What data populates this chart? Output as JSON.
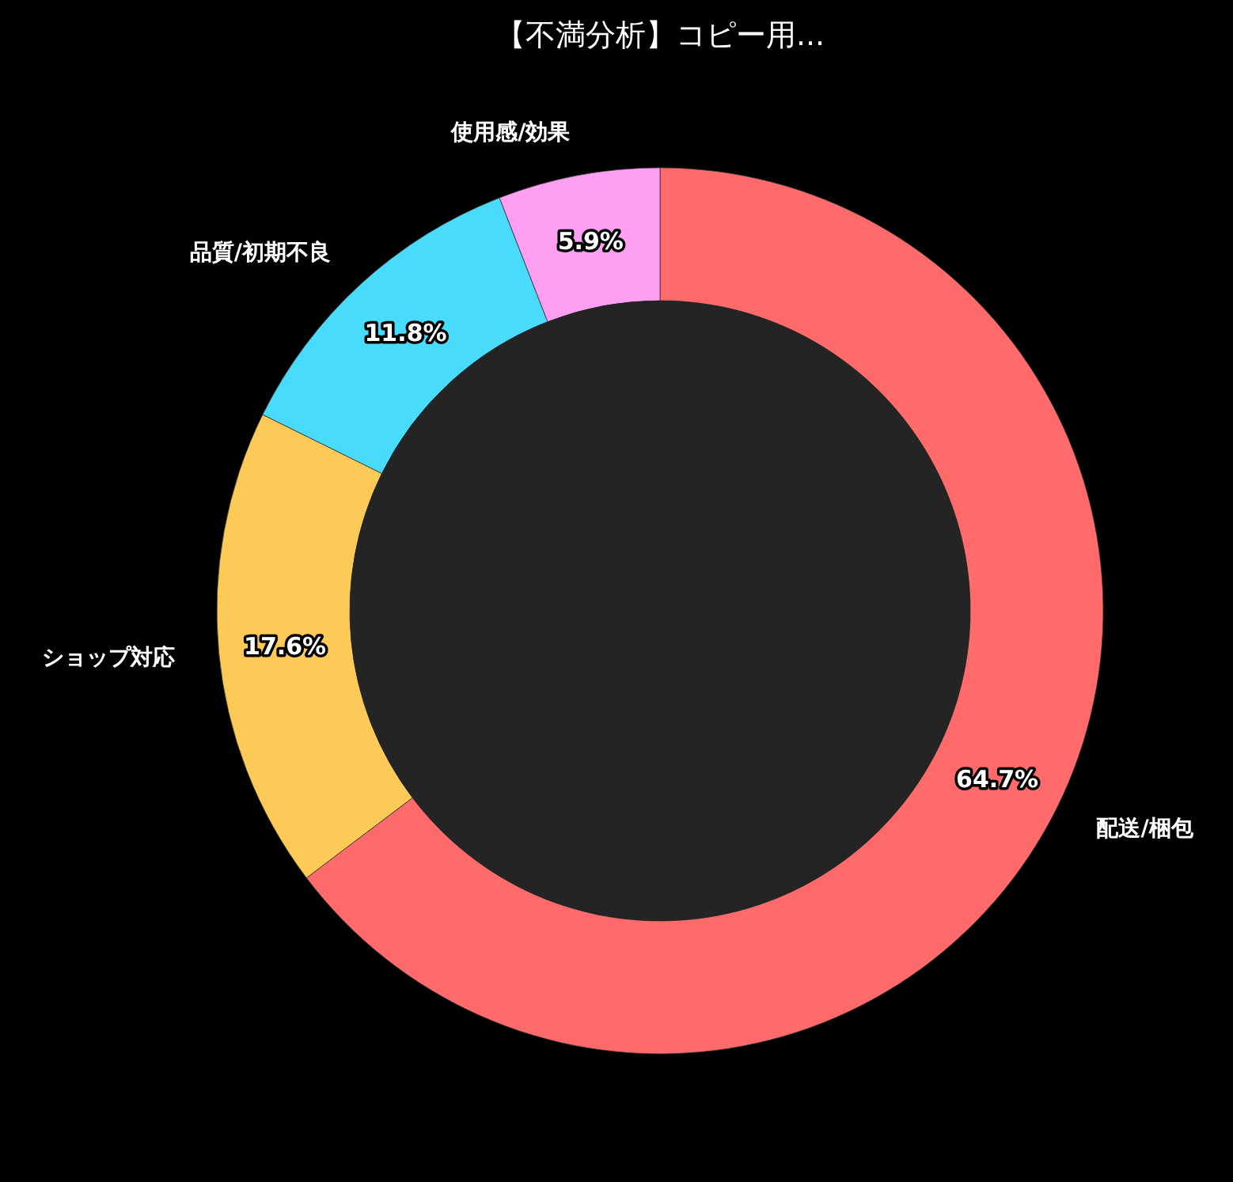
{
  "chart_data": {
    "type": "donut",
    "title": "【不満分析】コピー用...",
    "categories": [
      "配送/梱包",
      "ショップ対応",
      "品質/初期不良",
      "使用感/効果"
    ],
    "values": [
      64.7,
      17.6,
      11.8,
      5.9
    ],
    "colors": [
      "#ff6b6b",
      "#feca57",
      "#48dbfb",
      "#ff9ff3"
    ],
    "value_labels": [
      "64.7%",
      "17.6%",
      "11.8%",
      "5.9%"
    ]
  }
}
